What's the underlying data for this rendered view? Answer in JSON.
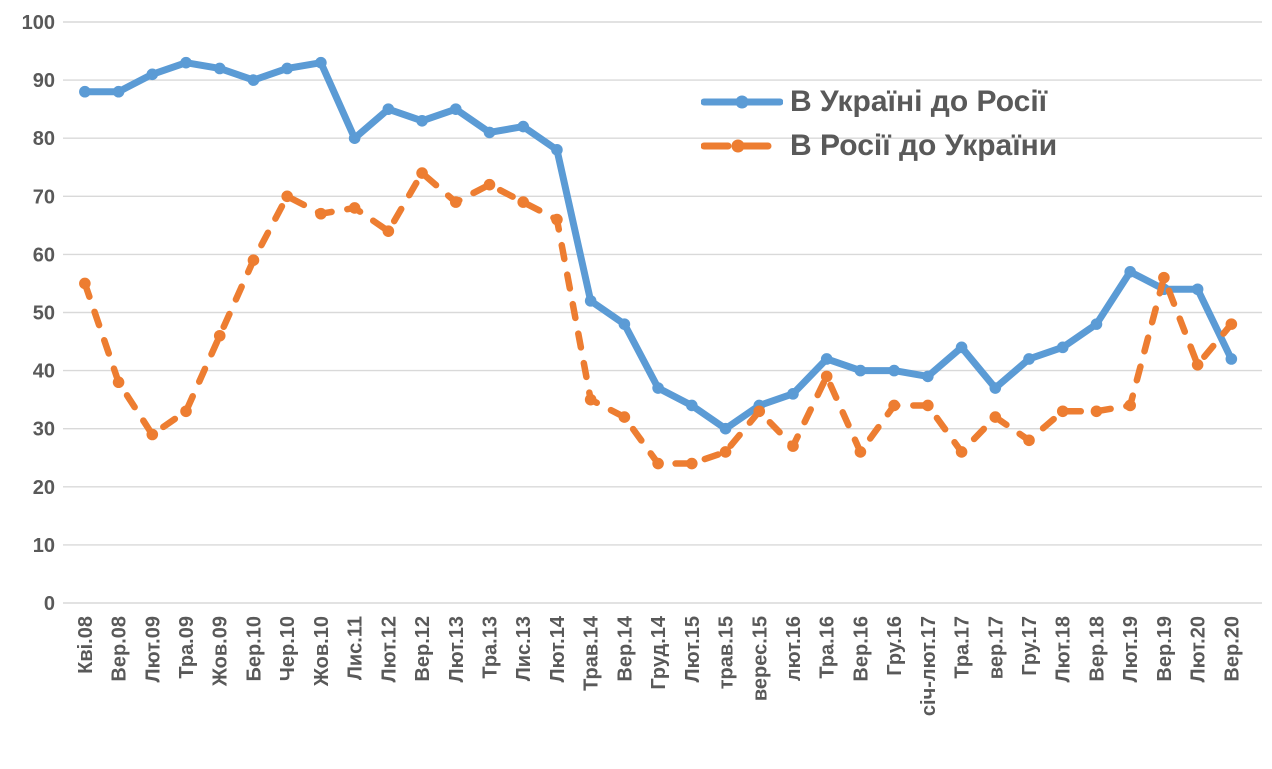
{
  "chart_data": {
    "type": "line",
    "title": "",
    "xlabel": "",
    "ylabel": "",
    "ylim": [
      0,
      100
    ],
    "ytick_step": 10,
    "yticks": [
      0,
      10,
      20,
      30,
      40,
      50,
      60,
      70,
      80,
      90,
      100
    ],
    "grid": "horizontal",
    "legend_position": "inside-top-right",
    "categories": [
      "Кві.08",
      "Вер.08",
      "Лют.09",
      "Тра.09",
      "Жов.09",
      "Бер.10",
      "Чер.10",
      "Жов.10",
      "Лис.11",
      "Лют.12",
      "Вер.12",
      "Лют.13",
      "Тра.13",
      "Лис.13",
      "Лют.14",
      "Трав.14",
      "Вер.14",
      "Груд.14",
      "Лют.15",
      "трав.15",
      "верес.15",
      "лют.16",
      "Тра.16",
      "Вер.16",
      "Гру.16",
      "січ-лют.17",
      "Тра.17",
      "вер.17",
      "Гру.17",
      "Лют.18",
      "Вер.18",
      "Лют.19",
      "Вер.19",
      "Лют.20",
      "Вер.20"
    ],
    "series": [
      {
        "name": "В Україні до Росії",
        "color": "#5B9BD5",
        "line_style": "solid",
        "marker": "circle",
        "values": [
          88,
          88,
          91,
          93,
          92,
          90,
          92,
          93,
          80,
          85,
          83,
          85,
          81,
          82,
          78,
          52,
          48,
          37,
          34,
          30,
          34,
          36,
          42,
          40,
          40,
          39,
          44,
          37,
          42,
          44,
          48,
          57,
          54,
          54,
          42
        ]
      },
      {
        "name": "В Росії до України",
        "color": "#ED7D31",
        "line_style": "dashed",
        "marker": "circle",
        "values": [
          55,
          38,
          29,
          33,
          46,
          59,
          70,
          67,
          68,
          64,
          74,
          69,
          72,
          69,
          66,
          35,
          32,
          24,
          24,
          26,
          33,
          27,
          39,
          26,
          34,
          34,
          26,
          32,
          28,
          33,
          33,
          34,
          56,
          41,
          48
        ]
      }
    ],
    "colors": {
      "grid": "#D9D9D9",
      "axis_text": "#595959",
      "background": "#FFFFFF"
    }
  }
}
